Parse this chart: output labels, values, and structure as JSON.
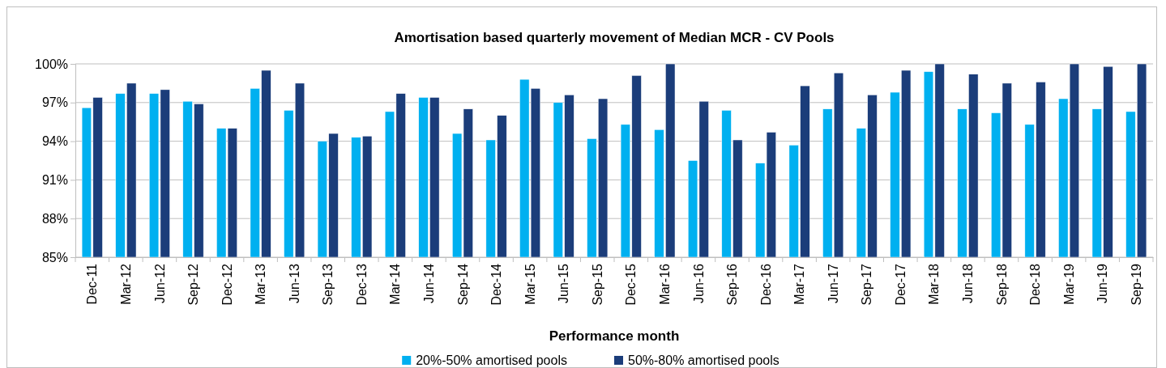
{
  "chart_data": {
    "type": "bar",
    "title": "Amortisation based quarterly movement of Median MCR - CV Pools",
    "xlabel": "Performance month",
    "categories": [
      "Dec-11",
      "Mar-12",
      "Jun-12",
      "Sep-12",
      "Dec-12",
      "Mar-13",
      "Jun-13",
      "Sep-13",
      "Dec-13",
      "Mar-14",
      "Jun-14",
      "Sep-14",
      "Dec-14",
      "Mar-15",
      "Jun-15",
      "Sep-15",
      "Dec-15",
      "Mar-16",
      "Jun-16",
      "Sep-16",
      "Dec-16",
      "Mar-17",
      "Jun-17",
      "Sep-17",
      "Dec-17",
      "Mar-18",
      "Jun-18",
      "Sep-18",
      "Dec-18",
      "Mar-19",
      "Jun-19",
      "Sep-19"
    ],
    "series": [
      {
        "name": "20%-50% amortised pools",
        "color": "#00b0f0",
        "values": [
          96.6,
          97.7,
          97.7,
          97.1,
          95.0,
          98.1,
          96.4,
          94.0,
          94.3,
          96.3,
          97.4,
          94.6,
          94.1,
          98.8,
          97.0,
          94.2,
          95.3,
          94.9,
          92.5,
          96.4,
          92.3,
          93.7,
          96.5,
          95.0,
          97.8,
          99.4,
          96.5,
          96.2,
          95.3,
          97.3,
          96.5,
          96.3
        ]
      },
      {
        "name": "50%-80% amortised pools",
        "color": "#1b3d7a",
        "values": [
          97.4,
          98.5,
          98.0,
          96.9,
          95.0,
          99.5,
          98.5,
          94.6,
          94.4,
          97.7,
          97.4,
          96.5,
          96.0,
          98.1,
          97.6,
          97.3,
          99.1,
          100,
          97.1,
          94.1,
          94.7,
          98.3,
          99.3,
          97.6,
          99.5,
          100,
          99.2,
          98.5,
          98.6,
          100,
          99.8,
          100
        ]
      }
    ],
    "ylim": [
      85,
      100
    ],
    "yticks": [
      {
        "value": 85,
        "label": "85%"
      },
      {
        "value": 88,
        "label": "88%"
      },
      {
        "value": 91,
        "label": "91%"
      },
      {
        "value": 94,
        "label": "94%"
      },
      {
        "value": 97,
        "label": "97%"
      },
      {
        "value": 100,
        "label": "100%"
      }
    ],
    "grid": "y",
    "legend": "bottom"
  }
}
